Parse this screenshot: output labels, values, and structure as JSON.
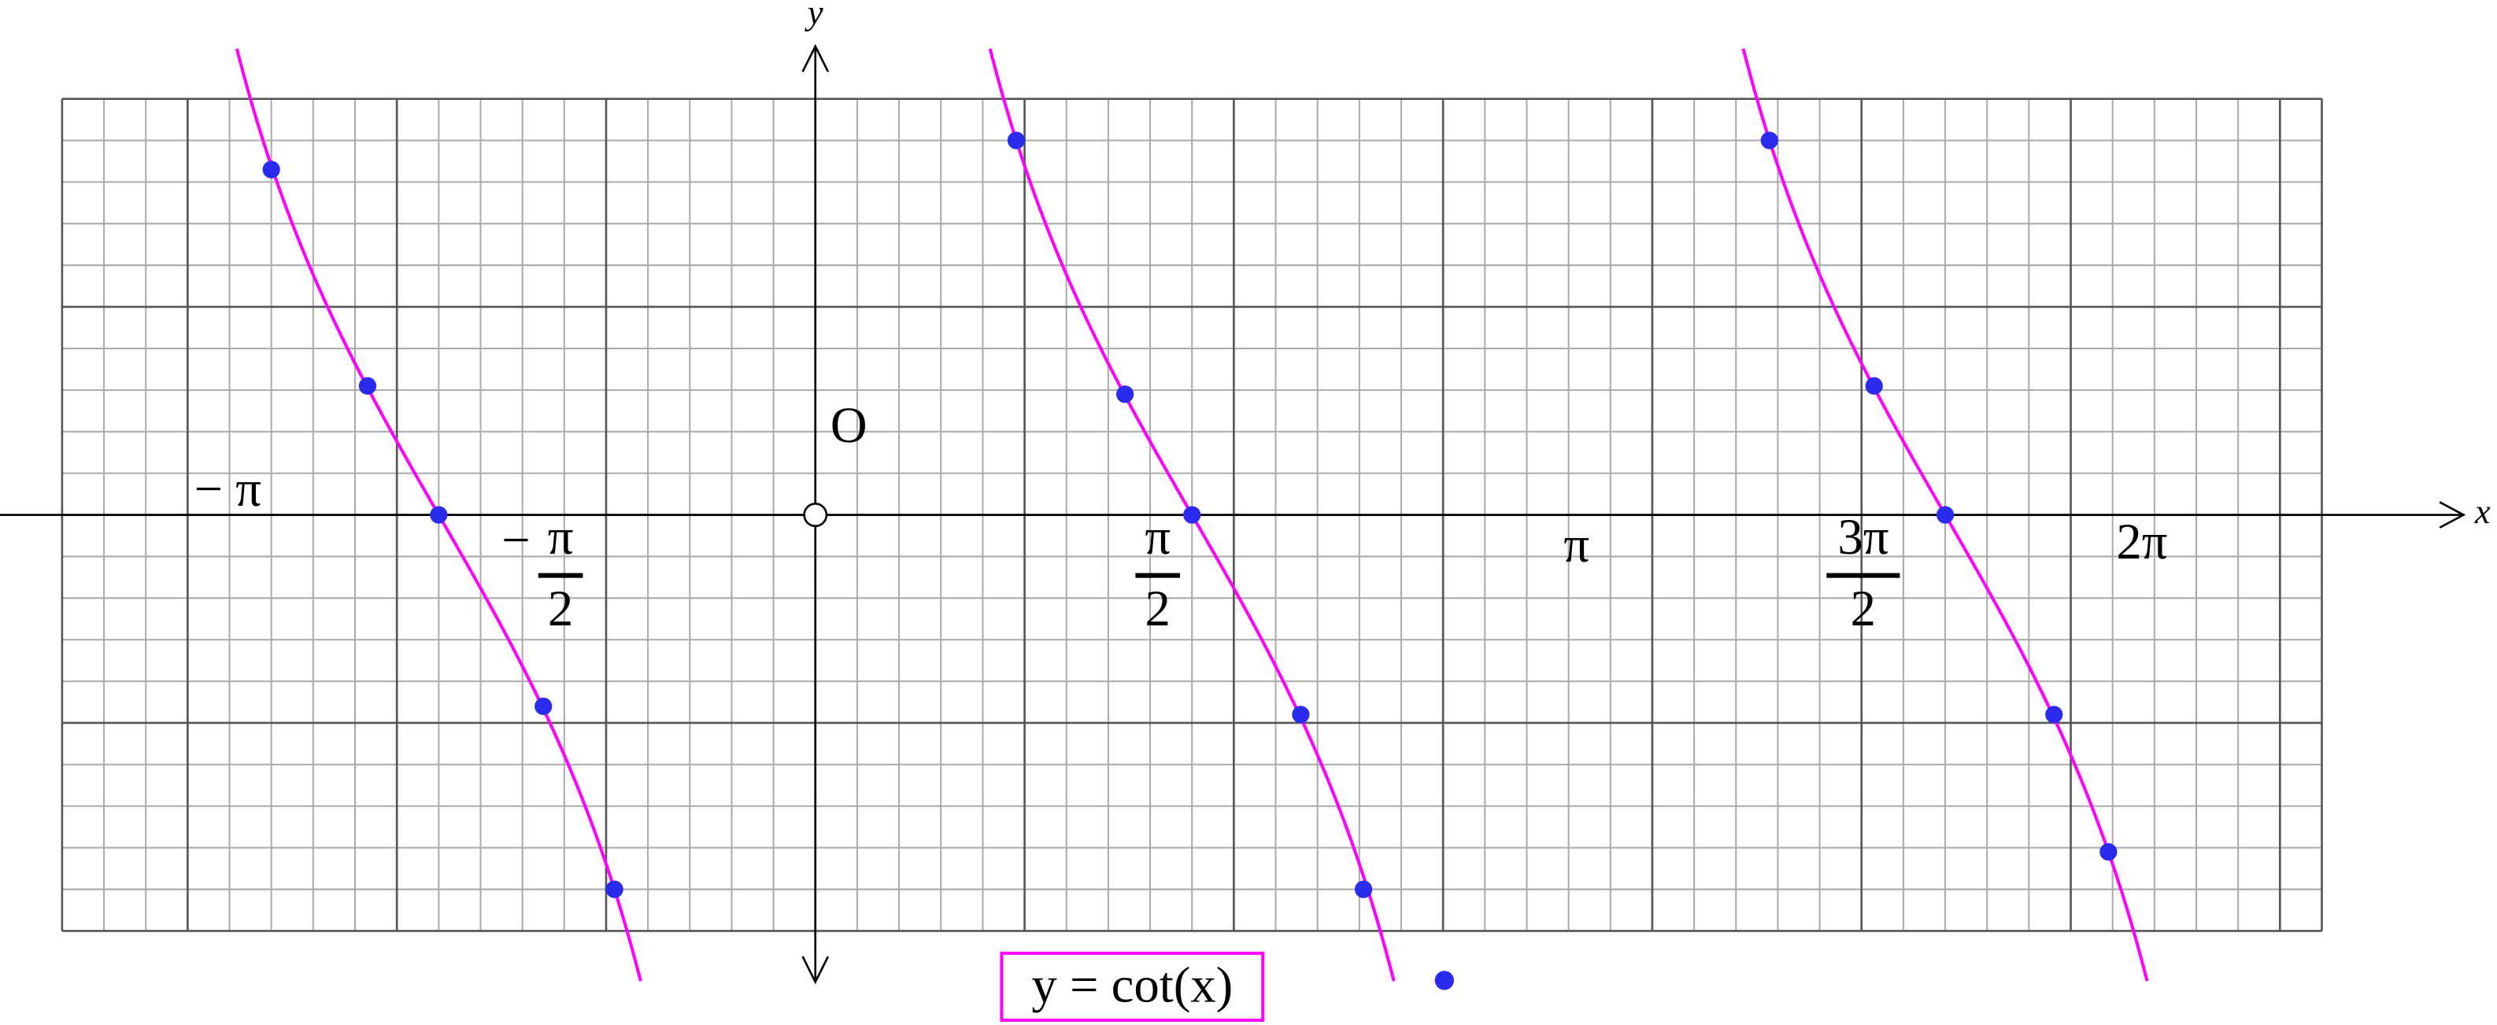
{
  "chart_data": {
    "type": "line",
    "axis_labels": {
      "x": "x",
      "y": "y"
    },
    "origin_label": "O",
    "xlim": [
      -180,
      360
    ],
    "ylim": [
      -1,
      1
    ],
    "grid": true,
    "xgrid": [
      -150,
      -100,
      -50,
      0,
      50,
      100,
      150,
      200,
      250,
      300,
      350
    ],
    "ygrid": [
      -1,
      -0.5,
      0,
      0.5,
      1
    ],
    "xticks": [
      {
        "value": -180,
        "label": "− π"
      },
      {
        "value": -90,
        "sign": "−",
        "numerator": "π",
        "denominator": "2"
      },
      {
        "value": 90,
        "numerator": "π",
        "denominator": "2"
      },
      {
        "value": 180,
        "label": "π"
      },
      {
        "value": 270,
        "numerator": "3π",
        "denominator": "2"
      },
      {
        "value": 360,
        "label": "2π"
      }
    ],
    "series": [
      {
        "name": "y = cot(x)",
        "color": "#ff00ff",
        "marker_color": "#2b2bee",
        "x": [
          -130,
          -107,
          -90,
          -65,
          -48,
          48,
          74,
          90,
          116,
          131,
          228,
          253,
          270,
          296,
          309
        ],
        "values": [
          0.83,
          0.31,
          0,
          -0.46,
          -0.9,
          0.9,
          0.29,
          0,
          -0.48,
          -0.9,
          0.9,
          0.31,
          0,
          -0.48,
          -0.81
        ]
      }
    ]
  }
}
